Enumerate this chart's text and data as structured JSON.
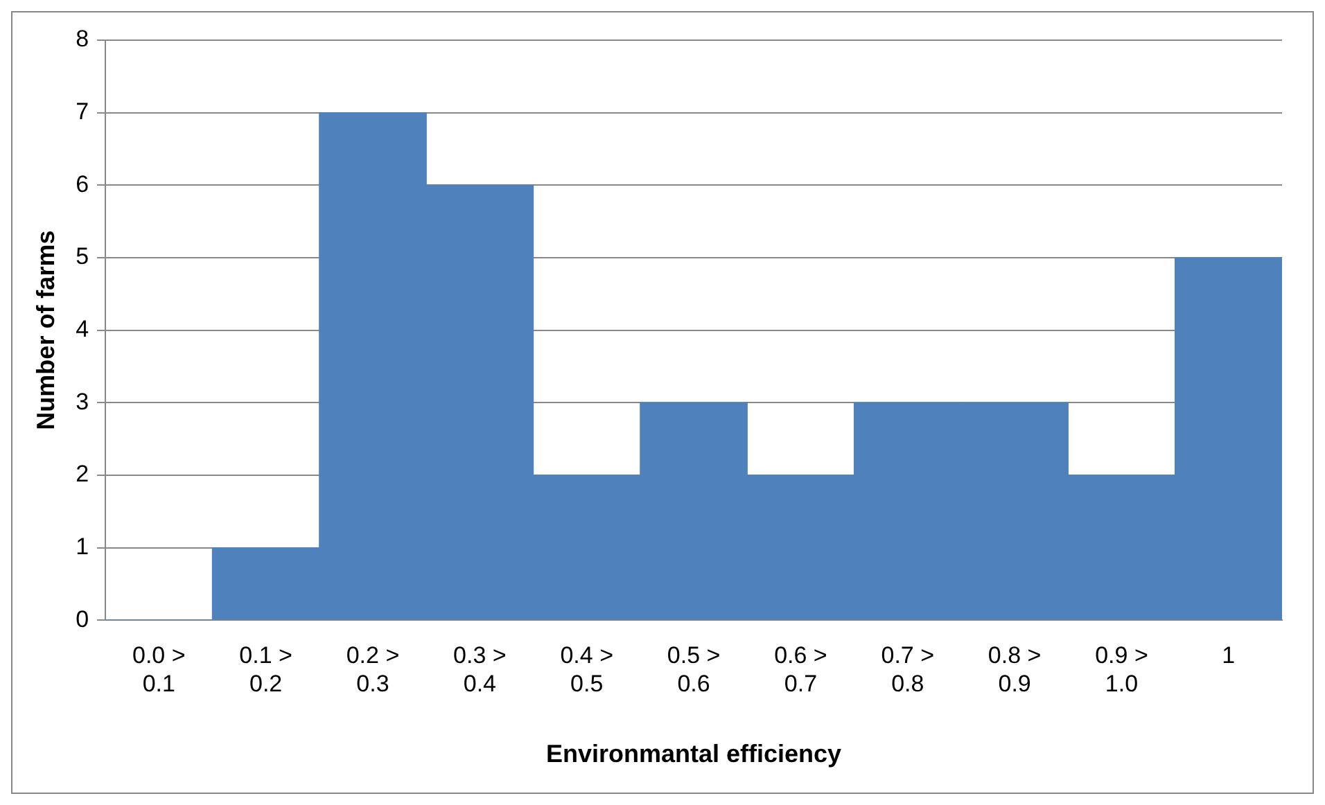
{
  "chart_data": {
    "type": "bar",
    "xlabel": "Environmantal efficiency",
    "ylabel": "Number of farms",
    "categories": [
      "0.0 > 0.1",
      "0.1 > 0.2",
      "0.2 > 0.3",
      "0.3 > 0.4",
      "0.4 > 0.5",
      "0.5 > 0.6",
      "0.6 > 0.7",
      "0.7 > 0.8",
      "0.8 > 0.9",
      "0.9 > 1.0",
      "1"
    ],
    "values": [
      0,
      1,
      7,
      6,
      2,
      3,
      2,
      3,
      3,
      2,
      5
    ],
    "color": "#4f81bd",
    "ylim": [
      0,
      8
    ],
    "yticks": [
      0,
      1,
      2,
      3,
      4,
      5,
      6,
      7,
      8
    ],
    "grid": "y",
    "legend": false
  }
}
